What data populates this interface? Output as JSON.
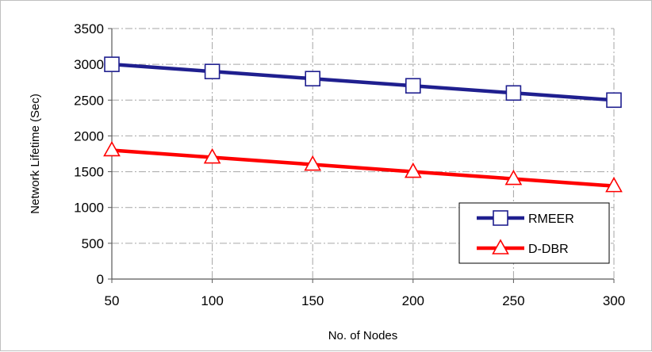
{
  "chart_data": {
    "type": "line",
    "title": "",
    "xlabel": "No. of Nodes",
    "ylabel": "Network Lifetime (Sec)",
    "x": [
      50,
      100,
      150,
      200,
      250,
      300
    ],
    "xlim": [
      50,
      300
    ],
    "ylim": [
      0,
      3500
    ],
    "yticks": [
      0,
      500,
      1000,
      1500,
      2000,
      2500,
      3000,
      3500
    ],
    "grid": true,
    "legend_position": "bottom-right",
    "series": [
      {
        "name": "RMEER",
        "values": [
          3000,
          2900,
          2800,
          2700,
          2600,
          2500
        ],
        "color": "#1f1f8f",
        "marker": "square"
      },
      {
        "name": "D-DBR",
        "values": [
          1800,
          1700,
          1600,
          1500,
          1400,
          1300
        ],
        "color": "#ff0000",
        "marker": "triangle"
      }
    ]
  }
}
